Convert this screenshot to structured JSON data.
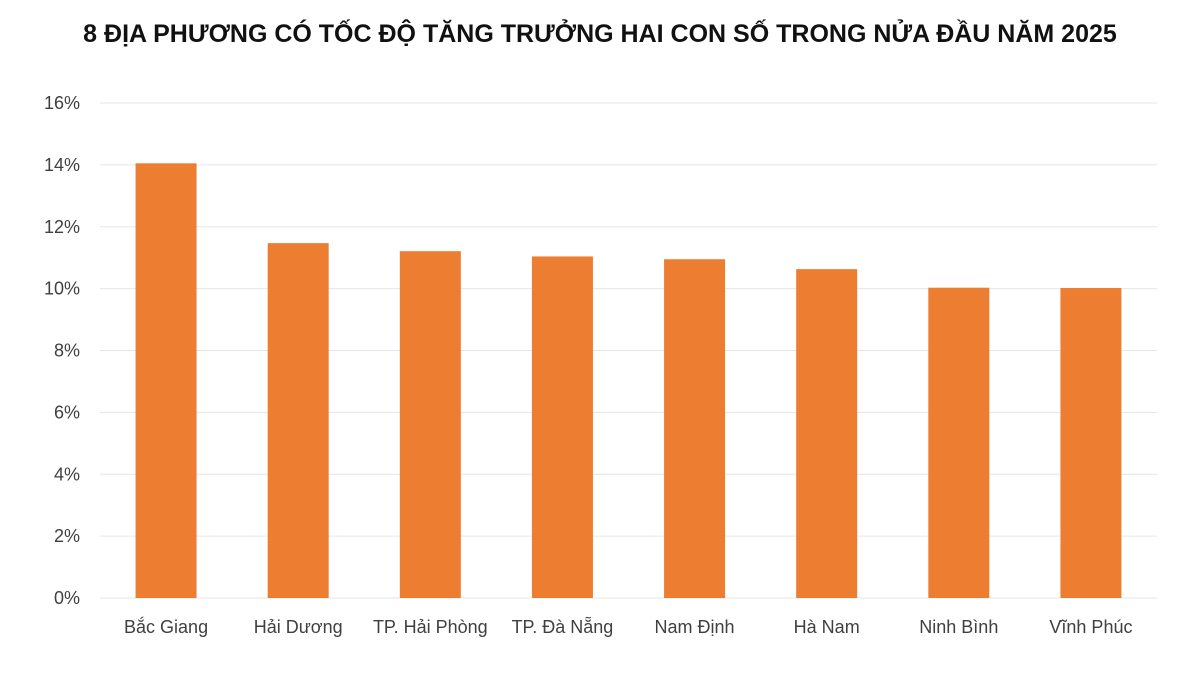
{
  "chart_data": {
    "type": "bar",
    "title": "8 ĐỊA PHƯƠNG CÓ TỐC ĐỘ TĂNG TRƯỞNG HAI CON SỐ TRONG NỬA ĐẦU NĂM 2025",
    "categories": [
      "Bắc Giang",
      "Hải Dương",
      "TP. Hải Phòng",
      "TP. Đà Nẵng",
      "Nam Định",
      "Hà Nam",
      "Ninh Bình",
      "Vĩnh Phúc"
    ],
    "values": [
      14.05,
      11.47,
      11.21,
      11.04,
      10.95,
      10.63,
      10.03,
      10.02
    ],
    "yticks": [
      "0%",
      "2%",
      "4%",
      "6%",
      "8%",
      "10%",
      "12%",
      "14%",
      "16%"
    ],
    "ylim": [
      0,
      16
    ],
    "grid": true,
    "bar_color": "#ED7D31",
    "grid_color": "#E6E6E6"
  }
}
